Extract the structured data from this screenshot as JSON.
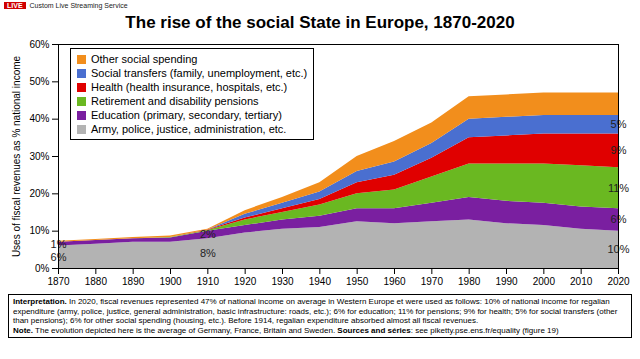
{
  "screen": {
    "badge": "LIVE",
    "source": "Custom Live Streaming Service"
  },
  "chart_data": {
    "type": "area",
    "stacked": true,
    "title": "The rise of the social State in Europe, 1870-2020",
    "y_label": "Uses of fiscal revenues as % national income",
    "x": [
      1870,
      1880,
      1890,
      1900,
      1910,
      1920,
      1930,
      1940,
      1950,
      1960,
      1970,
      1980,
      1990,
      2000,
      2010,
      2020
    ],
    "xlim": [
      1870,
      2020
    ],
    "xticks": [
      1870,
      1880,
      1890,
      1900,
      1910,
      1920,
      1930,
      1940,
      1950,
      1960,
      1970,
      1980,
      1990,
      2000,
      2010,
      2020
    ],
    "ylim": [
      0,
      60
    ],
    "yticks": [
      {
        "value": 0,
        "label": "0%"
      },
      {
        "value": 10,
        "label": "10%"
      },
      {
        "value": 20,
        "label": "20%"
      },
      {
        "value": 30,
        "label": "30%"
      },
      {
        "value": 40,
        "label": "40%"
      },
      {
        "value": 50,
        "label": "50%"
      },
      {
        "value": 60,
        "label": "60%"
      }
    ],
    "grid": false,
    "legend": "top-left",
    "series": [
      {
        "name": "Army, police, justice, administration, etc.",
        "color": "#b3b3b3",
        "values": [
          6,
          6.5,
          7,
          7,
          8,
          9.5,
          10.5,
          11,
          12.5,
          12,
          12.5,
          13,
          12,
          11.5,
          10.5,
          10
        ]
      },
      {
        "name": "Education (primary, secondary, tertiary)",
        "color": "#7a1fa0",
        "values": [
          1,
          1,
          1,
          1.2,
          2,
          2,
          2.5,
          3,
          3.5,
          4,
          5,
          6,
          6,
          6,
          6,
          6
        ]
      },
      {
        "name": "Retirement and disability pensions",
        "color": "#6ab821",
        "values": [
          0,
          0,
          0,
          0.1,
          0.2,
          1.5,
          2,
          3,
          4,
          5,
          7,
          9,
          10,
          10.5,
          11,
          11
        ]
      },
      {
        "name": "Health (health insurance, hospitals, etc.)",
        "color": "#e00000",
        "values": [
          0,
          0,
          0,
          0,
          0.1,
          0.5,
          1,
          1.5,
          3,
          4,
          5,
          7,
          7.5,
          8,
          8.5,
          9
        ]
      },
      {
        "name": "Social transfers (family, unemployment, etc.)",
        "color": "#4a6fd0",
        "values": [
          0,
          0,
          0,
          0,
          0,
          1,
          1.5,
          2,
          3,
          3.5,
          4,
          5,
          5,
          5,
          5,
          5
        ]
      },
      {
        "name": "Other social spending",
        "color": "#f28e1c",
        "values": [
          0.3,
          0.3,
          0.3,
          0.4,
          0.2,
          1,
          1.5,
          2.5,
          4,
          5.5,
          5.5,
          6,
          6,
          6,
          6,
          6
        ]
      }
    ],
    "annotations": [
      {
        "x": 1870,
        "series": "Army, police, justice, administration, etc.",
        "text": "6%"
      },
      {
        "x": 1870,
        "series": "Education (primary, secondary, tertiary)",
        "text": "1%"
      },
      {
        "x": 1910,
        "series": "Army, police, justice, administration, etc.",
        "text": "8%"
      },
      {
        "x": 1910,
        "series": "Education (primary, secondary, tertiary)",
        "text": "2%"
      },
      {
        "x": 2020,
        "series": "Army, police, justice, administration, etc.",
        "text": "10%"
      },
      {
        "x": 2020,
        "series": "Education (primary, secondary, tertiary)",
        "text": "6%"
      },
      {
        "x": 2020,
        "series": "Retirement and disability pensions",
        "text": "11%"
      },
      {
        "x": 2020,
        "series": "Health (health insurance, hospitals, etc.)",
        "text": "9%"
      },
      {
        "x": 2020,
        "series": "Social transfers (family, unemployment, etc.)",
        "text": "5%"
      }
    ],
    "caption": [
      {
        "lead": "Interpretation.",
        "text": " In 2020, fiscal revenues represented 47% of national income on average in Western Europe et were used as follows: 10% of national income for regalian expenditure (army, police, justice, general administration, basic infrastructure: roads, etc.); 6% for education; 11% for pensions; 9% for health; 5% for social transfers (other than pensions); 6% for other social spending (housing, etc.). Before 1914, regalian expenditure absorbed almost all fiscal revenues."
      },
      {
        "lead": "Note.",
        "text": " The evolution depicted here is the average of Germany, France, Britain and Sweden. "
      },
      {
        "lead": "Sources and séries",
        "text": ": see piketty.pse.ens.fr/equality (figure 19)"
      }
    ]
  }
}
